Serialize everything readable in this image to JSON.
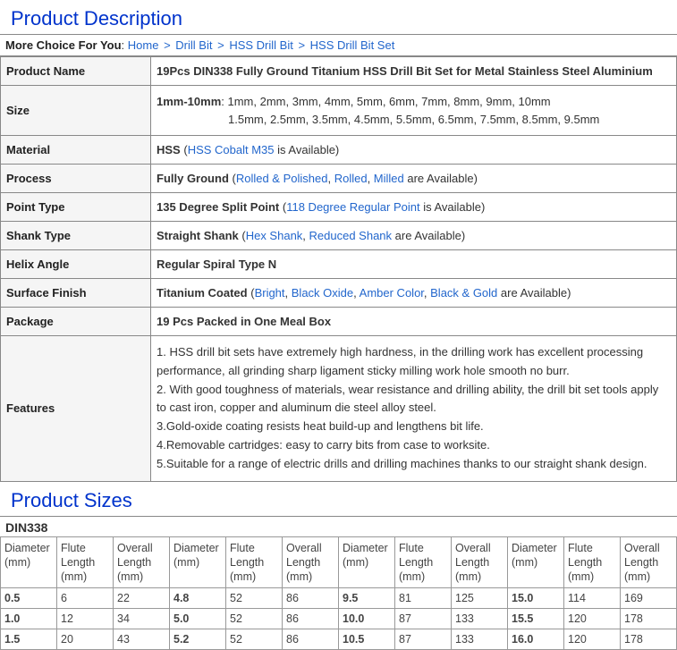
{
  "section1_title": "Product Description",
  "breadcrumb": {
    "lead": "More Choice For You",
    "items": [
      "Home",
      "Drill Bit",
      "HSS Drill Bit",
      "HSS Drill Bit Set"
    ],
    "sep": ">"
  },
  "spec": {
    "productName": {
      "label": "Product Name",
      "value": "19Pcs DIN338 Fully Ground Titanium HSS Drill Bit Set for Metal Stainless Steel Aluminium"
    },
    "size": {
      "label": "Size",
      "line1_strong": "1mm-10mm",
      "line1_rest": ": 1mm, 2mm, 3mm, 4mm, 5mm, 6mm, 7mm, 8mm, 9mm, 10mm",
      "line2": "1.5mm, 2.5mm, 3.5mm, 4.5mm, 5.5mm, 6.5mm, 7.5mm, 8.5mm, 9.5mm"
    },
    "material": {
      "label": "Material",
      "strong": "HSS",
      "paren_open": "  (",
      "link": "HSS Cobalt M35",
      "tail": " is Available)"
    },
    "process": {
      "label": "Process",
      "strong": "Fully Ground",
      "paren_open": "  (",
      "link1": "Rolled & Polished",
      "c1": ", ",
      "link2": "Rolled",
      "c2": ", ",
      "link3": "Milled",
      "tail": " are Available)"
    },
    "pointType": {
      "label": "Point Type",
      "strong": "135 Degree Split Point",
      "paren_open": "  (",
      "link": "118 Degree Regular Point",
      "tail": " is Available)"
    },
    "shankType": {
      "label": "Shank Type",
      "strong": "Straight Shank",
      "paren_open": "  (",
      "link1": "Hex Shank",
      "c1": ", ",
      "link2": "Reduced Shank",
      "tail": " are Available)"
    },
    "helixAngle": {
      "label": "Helix Angle",
      "strong": "Regular Spiral Type N"
    },
    "surfaceFinish": {
      "label": "Surface Finish",
      "strong": "Titanium Coated",
      "paren_open": "  (",
      "link1": "Bright",
      "c1": ", ",
      "link2": "Black Oxide",
      "c2": ", ",
      "link3": "Amber Color",
      "c3": ", ",
      "link4": "Black & Gold",
      "tail": " are Available)"
    },
    "package": {
      "label": "Package",
      "strong": "19 Pcs Packed in One Meal Box"
    },
    "features": {
      "label": "Features",
      "lines": [
        "1. HSS drill bit sets have extremely high hardness, in the drilling work has excellent processing performance, all grinding sharp ligament sticky milling work hole smooth no burr.",
        "2. With good toughness of materials, wear resistance and drilling ability, the drill bit set tools apply to cast iron, copper and aluminum die steel alloy steel.",
        "3.Gold-oxide coating resists heat build-up and lengthens bit life.",
        "4.Removable cartridges: easy to carry bits from case to worksite.",
        "5.Suitable for a range of electric drills and drilling machines thanks to our straight shank design."
      ]
    }
  },
  "section2_title": "Product Sizes",
  "din_label": "DIN338",
  "sizes": {
    "headers": [
      "Diameter (mm)",
      "Flute Length (mm)",
      "Overall Length (mm)",
      "Diameter (mm)",
      "Flute Length (mm)",
      "Overall Length (mm)",
      "Diameter (mm)",
      "Flute Length (mm)",
      "Overall Length (mm)",
      "Diameter (mm)",
      "Flute Length (mm)",
      "Overall Length (mm)"
    ],
    "rows": [
      [
        "0.5",
        "6",
        "22",
        "4.8",
        "52",
        "86",
        "9.5",
        "81",
        "125",
        "15.0",
        "114",
        "169"
      ],
      [
        "1.0",
        "12",
        "34",
        "5.0",
        "52",
        "86",
        "10.0",
        "87",
        "133",
        "15.5",
        "120",
        "178"
      ],
      [
        "1.5",
        "20",
        "43",
        "5.2",
        "52",
        "86",
        "10.5",
        "87",
        "133",
        "16.0",
        "120",
        "178"
      ]
    ]
  }
}
